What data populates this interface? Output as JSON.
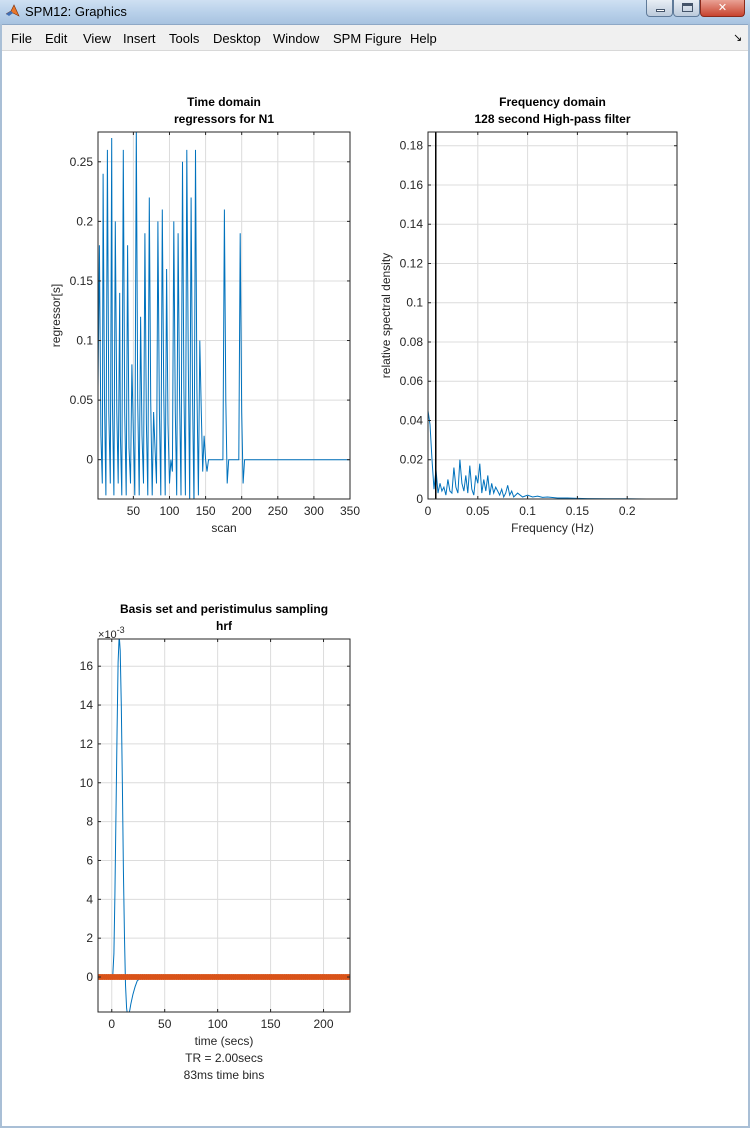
{
  "window": {
    "title": "SPM12: Graphics"
  },
  "menu": [
    "File",
    "Edit",
    "View",
    "Insert",
    "Tools",
    "Desktop",
    "Window",
    "SPM Figure",
    "Help"
  ],
  "dock_icon": "dock-arrow-icon",
  "colors": {
    "line": "#0072bd",
    "orange": "#d95319",
    "grid": "#dcdcdc"
  },
  "chart_data": [
    {
      "type": "line",
      "title": "Time domain",
      "subtitle": "regressors for N1",
      "xlabel": "scan",
      "ylabel": "regressor[s]",
      "xlim": [
        1,
        350
      ],
      "ylim": [
        -0.033,
        0.275
      ],
      "xticks": [
        50,
        100,
        150,
        200,
        250,
        300,
        350
      ],
      "yticks": [
        0,
        0.05,
        0.1,
        0.15,
        0.2,
        0.25
      ],
      "ytick_labels": [
        "0",
        "0.05",
        "0.1",
        "0.15",
        "0.2",
        "0.25"
      ],
      "grid": true,
      "x": [
        1,
        3,
        5,
        7,
        8,
        10,
        12,
        14,
        16,
        18,
        20,
        21,
        23,
        25,
        27,
        29,
        31,
        32,
        34,
        36,
        38,
        40,
        42,
        44,
        46,
        48,
        50,
        52,
        54,
        56,
        58,
        60,
        62,
        64,
        66,
        68,
        70,
        72,
        74,
        76,
        78,
        80,
        82,
        84,
        86,
        88,
        90,
        92,
        94,
        96,
        98,
        100,
        102,
        104,
        106,
        108,
        110,
        112,
        114,
        116,
        118,
        120,
        122,
        124,
        126,
        128,
        130,
        132,
        134,
        136,
        138,
        140,
        142,
        144,
        146,
        148,
        150,
        152,
        154,
        156,
        158,
        160,
        162,
        164,
        166,
        168,
        170,
        172,
        174,
        176,
        178,
        180,
        182,
        184,
        186,
        188,
        190,
        192,
        194,
        196,
        198,
        200,
        202,
        204,
        206,
        208,
        210,
        212,
        214,
        216,
        218,
        220,
        222,
        224,
        226,
        228,
        230,
        232,
        234,
        236,
        238,
        240,
        242,
        244,
        246,
        248,
        250,
        252,
        254,
        256,
        258,
        260,
        262,
        350
      ],
      "y": [
        0.06,
        0.18,
        0.02,
        -0.02,
        0.24,
        0.05,
        -0.03,
        0.26,
        0.04,
        -0.02,
        0.27,
        0.05,
        -0.03,
        0.2,
        0.04,
        -0.02,
        0.14,
        0.02,
        -0.03,
        0.26,
        0.04,
        -0.03,
        0.18,
        0.01,
        -0.02,
        0.08,
        0.02,
        -0.03,
        0.28,
        0.05,
        -0.03,
        0.12,
        0.02,
        -0.02,
        0.19,
        0.03,
        -0.03,
        0.22,
        0.05,
        -0.03,
        0.04,
        0.01,
        -0.02,
        0.2,
        0.04,
        -0.03,
        0.21,
        0.06,
        -0.03,
        0.16,
        0.03,
        -0.02,
        0.0,
        -0.01,
        0.2,
        0.04,
        -0.03,
        0.19,
        0.05,
        -0.03,
        0.25,
        0.06,
        -0.03,
        0.26,
        0.08,
        -0.035,
        0.22,
        0.05,
        -0.04,
        0.26,
        0.06,
        -0.03,
        0.1,
        0.04,
        -0.01,
        0.02,
        0.0,
        -0.01,
        0.0,
        0.0,
        0.0,
        0.0,
        0.0,
        0.0,
        0.0,
        0.0,
        0.0,
        0.0,
        0.0,
        0.21,
        0.05,
        -0.02,
        0.0,
        0.0,
        0.0,
        0.0,
        0.0,
        0.0,
        0.0,
        0.0,
        0.19,
        0.04,
        -0.02,
        0.0,
        0.0,
        0.0,
        0.0,
        0.0,
        0.0,
        0.0,
        0.0,
        0.0,
        0.0,
        0.0,
        0.0,
        0.0,
        0.0,
        0.0,
        0.0,
        0.0,
        0.0,
        0.0,
        0.0,
        0.0,
        0.0,
        0.0,
        0.0,
        0.0,
        0.0,
        0.0,
        0.0,
        0.0,
        0.0,
        0.0
      ]
    },
    {
      "type": "line",
      "title": "Frequency domain",
      "subtitle": "128 second High-pass filter",
      "xlabel": "Frequency (Hz)",
      "ylabel": "relative spectral density",
      "xlim": [
        0,
        0.25
      ],
      "ylim": [
        0,
        0.187
      ],
      "xticks": [
        0,
        0.05,
        0.1,
        0.15,
        0.2
      ],
      "xtick_labels": [
        "0",
        "0.05",
        "0.1",
        "0.15",
        "0.2"
      ],
      "yticks": [
        0,
        0.02,
        0.04,
        0.06,
        0.08,
        0.1,
        0.12,
        0.14,
        0.16,
        0.18
      ],
      "ytick_labels": [
        "0",
        "0.02",
        "0.04",
        "0.06",
        "0.08",
        "0.1",
        "0.12",
        "0.14",
        "0.16",
        "0.18"
      ],
      "grid": true,
      "cutoff_hz": 0.0078,
      "x": [
        0,
        0.002,
        0.004,
        0.006,
        0.008,
        0.01,
        0.012,
        0.014,
        0.016,
        0.018,
        0.02,
        0.022,
        0.024,
        0.026,
        0.028,
        0.03,
        0.032,
        0.034,
        0.036,
        0.038,
        0.04,
        0.042,
        0.044,
        0.046,
        0.048,
        0.05,
        0.052,
        0.054,
        0.056,
        0.058,
        0.06,
        0.062,
        0.064,
        0.066,
        0.068,
        0.07,
        0.072,
        0.074,
        0.076,
        0.078,
        0.08,
        0.082,
        0.084,
        0.086,
        0.088,
        0.09,
        0.095,
        0.1,
        0.105,
        0.11,
        0.115,
        0.12,
        0.13,
        0.14,
        0.15,
        0.16,
        0.18,
        0.2,
        0.22,
        0.25
      ],
      "y": [
        0.045,
        0.038,
        0.02,
        0.005,
        0.015,
        0.003,
        0.008,
        0.004,
        0.006,
        0.002,
        0.01,
        0.004,
        0.003,
        0.016,
        0.006,
        0.003,
        0.02,
        0.008,
        0.004,
        0.012,
        0.003,
        0.017,
        0.005,
        0.002,
        0.012,
        0.008,
        0.018,
        0.003,
        0.01,
        0.004,
        0.012,
        0.002,
        0.008,
        0.003,
        0.006,
        0.004,
        0.002,
        0.005,
        0.001,
        0.003,
        0.007,
        0.002,
        0.004,
        0.001,
        0.002,
        0.003,
        0.001,
        0.002,
        0.001,
        0.0015,
        0.0008,
        0.001,
        0.0005,
        0.0005,
        0.0003,
        0.0002,
        0.0001,
        0.0001,
        0.0,
        0.0
      ]
    },
    {
      "type": "line",
      "title": "Basis set and peristimulus sampling",
      "subtitle": "hrf",
      "xlabel": "time (secs)",
      "notes": [
        "TR = 2.00secs",
        "83ms time bins"
      ],
      "exponent_label": "10",
      "exponent": "-3",
      "xlim": [
        -13,
        225
      ],
      "ylim": [
        -0.0018,
        0.0174
      ],
      "xticks": [
        0,
        50,
        100,
        150,
        200
      ],
      "yticks": [
        0,
        0.002,
        0.004,
        0.006,
        0.008,
        0.01,
        0.012,
        0.014,
        0.016
      ],
      "ytick_labels": [
        "0",
        "2",
        "4",
        "6",
        "8",
        "10",
        "12",
        "14",
        "16"
      ],
      "grid": true,
      "series": [
        {
          "x": [
            -13,
            0,
            1,
            2,
            3,
            4,
            5,
            6,
            7,
            8,
            9,
            10,
            11,
            12,
            13,
            14,
            15,
            16,
            17,
            18,
            20,
            22,
            24,
            26,
            28,
            30,
            32,
            225
          ],
          "y": [
            0,
            0,
            0.0001,
            0.0012,
            0.0042,
            0.0085,
            0.0128,
            0.0162,
            0.0176,
            0.0168,
            0.014,
            0.0098,
            0.0055,
            0.002,
            -0.0004,
            -0.0016,
            -0.002,
            -0.0019,
            -0.0017,
            -0.0014,
            -0.0009,
            -0.0005,
            -0.0002,
            -0.0001,
            0,
            0,
            0,
            0
          ]
        }
      ],
      "sampling": {
        "from": -13,
        "to": 225,
        "step": 2,
        "value": 0
      }
    }
  ]
}
